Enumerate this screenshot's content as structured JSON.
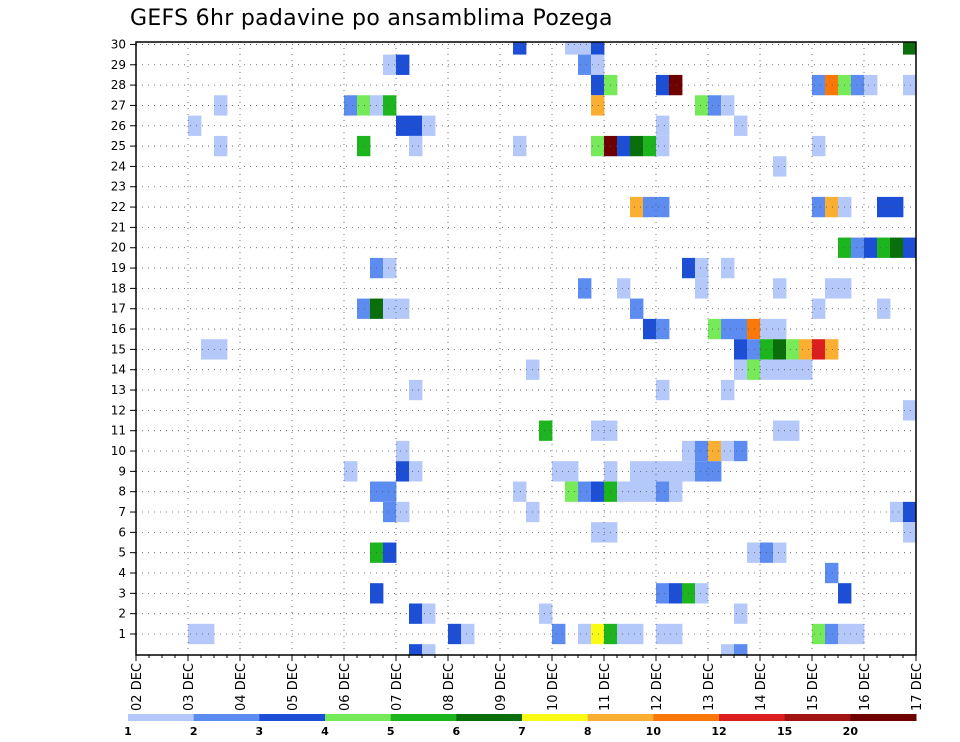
{
  "chart_data": {
    "type": "heatmap",
    "title": "GEFS 6hr padavine po ansamblima Pozega",
    "xlabel": "",
    "ylabel": "",
    "x_tick_labels": [
      "02 DEC",
      "03 DEC",
      "04 DEC",
      "05 DEC",
      "06 DEC",
      "07 DEC",
      "08 DEC",
      "09 DEC",
      "10 DEC",
      "11 DEC",
      "12 DEC",
      "13 DEC",
      "14 DEC",
      "15 DEC",
      "16 DEC",
      "17 DEC"
    ],
    "y_tick_labels": [
      "1",
      "2",
      "3",
      "4",
      "5",
      "6",
      "7",
      "8",
      "9",
      "10",
      "11",
      "12",
      "13",
      "14",
      "15",
      "16",
      "17",
      "18",
      "19",
      "20",
      "21",
      "22",
      "23",
      "24",
      "25",
      "26",
      "27",
      "28",
      "29",
      "30"
    ],
    "x_range_days": [
      0,
      15
    ],
    "step_hours": 6,
    "y_range_members": [
      1,
      30
    ],
    "grid": "dotted",
    "legend": {
      "placement": "bottom",
      "thresholds": [
        "1",
        "2",
        "3",
        "4",
        "5",
        "6",
        "7",
        "8",
        "10",
        "12",
        "15",
        "20"
      ],
      "colors": [
        "#b4c8fa",
        "#5c8cf0",
        "#1c4ed6",
        "#76ea58",
        "#1db51d",
        "#0a6e0a",
        "#fafa14",
        "#faaf32",
        "#fa780a",
        "#dc1e1e",
        "#a01414",
        "#6e0000"
      ]
    },
    "cells": [
      {
        "member": 30,
        "day": 7.25,
        "cat": 2
      },
      {
        "member": 30,
        "day": 8.25,
        "cat": 0
      },
      {
        "member": 30,
        "day": 8.5,
        "cat": 0
      },
      {
        "member": 30,
        "day": 8.75,
        "cat": 2
      },
      {
        "member": 30,
        "day": 14.75,
        "cat": 5
      },
      {
        "member": 29,
        "day": 4.75,
        "cat": 0
      },
      {
        "member": 29,
        "day": 5.0,
        "cat": 2
      },
      {
        "member": 29,
        "day": 8.5,
        "cat": 1
      },
      {
        "member": 29,
        "day": 8.75,
        "cat": 0
      },
      {
        "member": 28,
        "day": 8.75,
        "cat": 2
      },
      {
        "member": 28,
        "day": 9.0,
        "cat": 3
      },
      {
        "member": 28,
        "day": 10.0,
        "cat": 2
      },
      {
        "member": 28,
        "day": 10.25,
        "cat": 11
      },
      {
        "member": 28,
        "day": 13.0,
        "cat": 1
      },
      {
        "member": 28,
        "day": 13.25,
        "cat": 8
      },
      {
        "member": 28,
        "day": 13.5,
        "cat": 3
      },
      {
        "member": 28,
        "day": 13.75,
        "cat": 1
      },
      {
        "member": 28,
        "day": 14.0,
        "cat": 0
      },
      {
        "member": 28,
        "day": 14.75,
        "cat": 0
      },
      {
        "member": 27,
        "day": 1.5,
        "cat": 0
      },
      {
        "member": 27,
        "day": 4.0,
        "cat": 1
      },
      {
        "member": 27,
        "day": 4.25,
        "cat": 3
      },
      {
        "member": 27,
        "day": 4.5,
        "cat": 0
      },
      {
        "member": 27,
        "day": 4.75,
        "cat": 4
      },
      {
        "member": 27,
        "day": 8.75,
        "cat": 7
      },
      {
        "member": 27,
        "day": 10.75,
        "cat": 3
      },
      {
        "member": 27,
        "day": 11.0,
        "cat": 1
      },
      {
        "member": 27,
        "day": 11.25,
        "cat": 0
      },
      {
        "member": 26,
        "day": 1.0,
        "cat": 0
      },
      {
        "member": 26,
        "day": 5.0,
        "cat": 2
      },
      {
        "member": 26,
        "day": 5.25,
        "cat": 2
      },
      {
        "member": 26,
        "day": 5.5,
        "cat": 0
      },
      {
        "member": 26,
        "day": 10.0,
        "cat": 0
      },
      {
        "member": 26,
        "day": 11.5,
        "cat": 0
      },
      {
        "member": 25,
        "day": 1.5,
        "cat": 0
      },
      {
        "member": 25,
        "day": 4.25,
        "cat": 4
      },
      {
        "member": 25,
        "day": 5.25,
        "cat": 0
      },
      {
        "member": 25,
        "day": 7.25,
        "cat": 0
      },
      {
        "member": 25,
        "day": 8.75,
        "cat": 3
      },
      {
        "member": 25,
        "day": 9.0,
        "cat": 11
      },
      {
        "member": 25,
        "day": 9.25,
        "cat": 2
      },
      {
        "member": 25,
        "day": 9.5,
        "cat": 5
      },
      {
        "member": 25,
        "day": 9.75,
        "cat": 4
      },
      {
        "member": 25,
        "day": 10.0,
        "cat": 0
      },
      {
        "member": 25,
        "day": 13.0,
        "cat": 0
      },
      {
        "member": 24,
        "day": 12.25,
        "cat": 0
      },
      {
        "member": 22,
        "day": 9.5,
        "cat": 7
      },
      {
        "member": 22,
        "day": 9.75,
        "cat": 1
      },
      {
        "member": 22,
        "day": 10.0,
        "cat": 1
      },
      {
        "member": 22,
        "day": 13.0,
        "cat": 1
      },
      {
        "member": 22,
        "day": 13.25,
        "cat": 7
      },
      {
        "member": 22,
        "day": 13.5,
        "cat": 0
      },
      {
        "member": 22,
        "day": 14.25,
        "cat": 2
      },
      {
        "member": 22,
        "day": 14.5,
        "cat": 2
      },
      {
        "member": 20,
        "day": 13.5,
        "cat": 4
      },
      {
        "member": 20,
        "day": 13.75,
        "cat": 1
      },
      {
        "member": 20,
        "day": 14.0,
        "cat": 2
      },
      {
        "member": 20,
        "day": 14.25,
        "cat": 4
      },
      {
        "member": 20,
        "day": 14.5,
        "cat": 5
      },
      {
        "member": 20,
        "day": 14.75,
        "cat": 2
      },
      {
        "member": 19,
        "day": 4.5,
        "cat": 1
      },
      {
        "member": 19,
        "day": 4.75,
        "cat": 0
      },
      {
        "member": 19,
        "day": 10.5,
        "cat": 2
      },
      {
        "member": 19,
        "day": 10.75,
        "cat": 0
      },
      {
        "member": 19,
        "day": 11.25,
        "cat": 0
      },
      {
        "member": 18,
        "day": 8.5,
        "cat": 1
      },
      {
        "member": 18,
        "day": 9.25,
        "cat": 0
      },
      {
        "member": 18,
        "day": 10.75,
        "cat": 0
      },
      {
        "member": 18,
        "day": 12.25,
        "cat": 0
      },
      {
        "member": 18,
        "day": 13.25,
        "cat": 0
      },
      {
        "member": 18,
        "day": 13.5,
        "cat": 0
      },
      {
        "member": 17,
        "day": 4.25,
        "cat": 1
      },
      {
        "member": 17,
        "day": 4.5,
        "cat": 5
      },
      {
        "member": 17,
        "day": 4.75,
        "cat": 0
      },
      {
        "member": 17,
        "day": 5.0,
        "cat": 0
      },
      {
        "member": 17,
        "day": 9.5,
        "cat": 1
      },
      {
        "member": 17,
        "day": 13.0,
        "cat": 0
      },
      {
        "member": 17,
        "day": 14.25,
        "cat": 0
      },
      {
        "member": 16,
        "day": 9.75,
        "cat": 2
      },
      {
        "member": 16,
        "day": 10.0,
        "cat": 1
      },
      {
        "member": 16,
        "day": 11.0,
        "cat": 3
      },
      {
        "member": 16,
        "day": 11.25,
        "cat": 1
      },
      {
        "member": 16,
        "day": 11.5,
        "cat": 1
      },
      {
        "member": 16,
        "day": 11.75,
        "cat": 8
      },
      {
        "member": 16,
        "day": 12.0,
        "cat": 0
      },
      {
        "member": 16,
        "day": 12.25,
        "cat": 0
      },
      {
        "member": 15,
        "day": 1.25,
        "cat": 0
      },
      {
        "member": 15,
        "day": 1.5,
        "cat": 0
      },
      {
        "member": 15,
        "day": 11.5,
        "cat": 2
      },
      {
        "member": 15,
        "day": 11.75,
        "cat": 1
      },
      {
        "member": 15,
        "day": 12.0,
        "cat": 4
      },
      {
        "member": 15,
        "day": 12.25,
        "cat": 5
      },
      {
        "member": 15,
        "day": 12.5,
        "cat": 3
      },
      {
        "member": 15,
        "day": 12.75,
        "cat": 7
      },
      {
        "member": 15,
        "day": 13.0,
        "cat": 9
      },
      {
        "member": 15,
        "day": 13.25,
        "cat": 7
      },
      {
        "member": 14,
        "day": 7.5,
        "cat": 0
      },
      {
        "member": 14,
        "day": 11.5,
        "cat": 0
      },
      {
        "member": 14,
        "day": 11.75,
        "cat": 3
      },
      {
        "member": 14,
        "day": 12.0,
        "cat": 0
      },
      {
        "member": 14,
        "day": 12.25,
        "cat": 0
      },
      {
        "member": 14,
        "day": 12.5,
        "cat": 0
      },
      {
        "member": 14,
        "day": 12.75,
        "cat": 0
      },
      {
        "member": 13,
        "day": 5.25,
        "cat": 0
      },
      {
        "member": 13,
        "day": 10.0,
        "cat": 0
      },
      {
        "member": 13,
        "day": 11.25,
        "cat": 0
      },
      {
        "member": 12,
        "day": 14.75,
        "cat": 0
      },
      {
        "member": 11,
        "day": 7.75,
        "cat": 4
      },
      {
        "member": 11,
        "day": 8.75,
        "cat": 0
      },
      {
        "member": 11,
        "day": 9.0,
        "cat": 0
      },
      {
        "member": 11,
        "day": 12.25,
        "cat": 0
      },
      {
        "member": 11,
        "day": 12.5,
        "cat": 0
      },
      {
        "member": 10,
        "day": 5.0,
        "cat": 0
      },
      {
        "member": 10,
        "day": 10.5,
        "cat": 0
      },
      {
        "member": 10,
        "day": 10.75,
        "cat": 1
      },
      {
        "member": 10,
        "day": 11.0,
        "cat": 7
      },
      {
        "member": 10,
        "day": 11.25,
        "cat": 0
      },
      {
        "member": 10,
        "day": 11.5,
        "cat": 1
      },
      {
        "member": 9,
        "day": 4.0,
        "cat": 0
      },
      {
        "member": 9,
        "day": 5.0,
        "cat": 2
      },
      {
        "member": 9,
        "day": 5.25,
        "cat": 0
      },
      {
        "member": 9,
        "day": 8.0,
        "cat": 0
      },
      {
        "member": 9,
        "day": 8.25,
        "cat": 0
      },
      {
        "member": 9,
        "day": 9.0,
        "cat": 0
      },
      {
        "member": 9,
        "day": 9.5,
        "cat": 0
      },
      {
        "member": 9,
        "day": 9.75,
        "cat": 0
      },
      {
        "member": 9,
        "day": 10.0,
        "cat": 0
      },
      {
        "member": 9,
        "day": 10.25,
        "cat": 0
      },
      {
        "member": 9,
        "day": 10.5,
        "cat": 0
      },
      {
        "member": 9,
        "day": 10.75,
        "cat": 1
      },
      {
        "member": 9,
        "day": 11.0,
        "cat": 1
      },
      {
        "member": 8,
        "day": 4.5,
        "cat": 1
      },
      {
        "member": 8,
        "day": 4.75,
        "cat": 1
      },
      {
        "member": 8,
        "day": 7.25,
        "cat": 0
      },
      {
        "member": 8,
        "day": 8.25,
        "cat": 3
      },
      {
        "member": 8,
        "day": 8.5,
        "cat": 1
      },
      {
        "member": 8,
        "day": 8.75,
        "cat": 2
      },
      {
        "member": 8,
        "day": 9.0,
        "cat": 4
      },
      {
        "member": 8,
        "day": 9.25,
        "cat": 0
      },
      {
        "member": 8,
        "day": 9.5,
        "cat": 0
      },
      {
        "member": 8,
        "day": 9.75,
        "cat": 0
      },
      {
        "member": 8,
        "day": 10.0,
        "cat": 1
      },
      {
        "member": 8,
        "day": 10.25,
        "cat": 0
      },
      {
        "member": 7,
        "day": 4.75,
        "cat": 1
      },
      {
        "member": 7,
        "day": 5.0,
        "cat": 0
      },
      {
        "member": 7,
        "day": 7.5,
        "cat": 0
      },
      {
        "member": 7,
        "day": 14.5,
        "cat": 0
      },
      {
        "member": 7,
        "day": 14.75,
        "cat": 2
      },
      {
        "member": 6,
        "day": 8.75,
        "cat": 0
      },
      {
        "member": 6,
        "day": 9.0,
        "cat": 0
      },
      {
        "member": 6,
        "day": 14.75,
        "cat": 0
      },
      {
        "member": 5,
        "day": 4.5,
        "cat": 4
      },
      {
        "member": 5,
        "day": 4.75,
        "cat": 2
      },
      {
        "member": 5,
        "day": 11.75,
        "cat": 0
      },
      {
        "member": 5,
        "day": 12.0,
        "cat": 1
      },
      {
        "member": 5,
        "day": 12.25,
        "cat": 0
      },
      {
        "member": 4,
        "day": 13.25,
        "cat": 1
      },
      {
        "member": 3,
        "day": 4.5,
        "cat": 2
      },
      {
        "member": 3,
        "day": 10.0,
        "cat": 1
      },
      {
        "member": 3,
        "day": 10.25,
        "cat": 2
      },
      {
        "member": 3,
        "day": 10.5,
        "cat": 4
      },
      {
        "member": 3,
        "day": 10.75,
        "cat": 0
      },
      {
        "member": 3,
        "day": 13.5,
        "cat": 2
      },
      {
        "member": 2,
        "day": 5.25,
        "cat": 2
      },
      {
        "member": 2,
        "day": 5.5,
        "cat": 0
      },
      {
        "member": 2,
        "day": 7.75,
        "cat": 0
      },
      {
        "member": 2,
        "day": 11.5,
        "cat": 0
      },
      {
        "member": 1,
        "day": 1.0,
        "cat": 0
      },
      {
        "member": 1,
        "day": 1.25,
        "cat": 0
      },
      {
        "member": 1,
        "day": 6.0,
        "cat": 2
      },
      {
        "member": 1,
        "day": 6.25,
        "cat": 0
      },
      {
        "member": 1,
        "day": 8.0,
        "cat": 1
      },
      {
        "member": 1,
        "day": 8.5,
        "cat": 0
      },
      {
        "member": 1,
        "day": 8.75,
        "cat": 6
      },
      {
        "member": 1,
        "day": 9.0,
        "cat": 4
      },
      {
        "member": 1,
        "day": 9.25,
        "cat": 0
      },
      {
        "member": 1,
        "day": 9.5,
        "cat": 0
      },
      {
        "member": 1,
        "day": 10.0,
        "cat": 0
      },
      {
        "member": 1,
        "day": 10.25,
        "cat": 0
      },
      {
        "member": 1,
        "day": 13.0,
        "cat": 3
      },
      {
        "member": 1,
        "day": 13.25,
        "cat": 1
      },
      {
        "member": 1,
        "day": 13.5,
        "cat": 0
      },
      {
        "member": 1,
        "day": 13.75,
        "cat": 0
      },
      {
        "member": 0,
        "day": 5.25,
        "cat": 2
      },
      {
        "member": 0,
        "day": 5.5,
        "cat": 0
      },
      {
        "member": 0,
        "day": 11.25,
        "cat": 0
      },
      {
        "member": 0,
        "day": 11.5,
        "cat": 1
      }
    ]
  }
}
